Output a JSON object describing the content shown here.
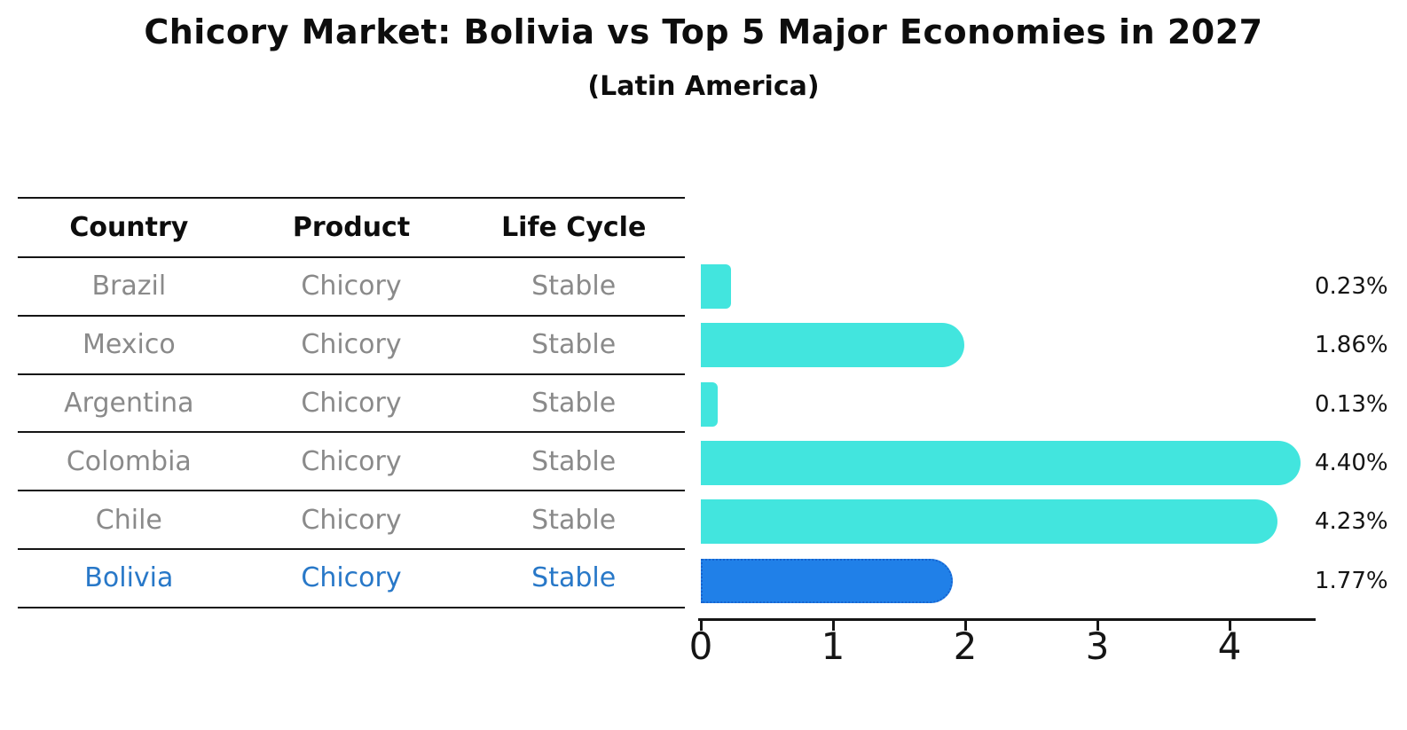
{
  "title": "Chicory Market: Bolivia vs Top 5 Major Economies in 2027",
  "subtitle": "(Latin America)",
  "table": {
    "headers": [
      "Country",
      "Product",
      "Life Cycle"
    ],
    "rows": [
      {
        "country": "Brazil",
        "product": "Chicory",
        "life_cycle": "Stable",
        "highlighted": false
      },
      {
        "country": "Mexico",
        "product": "Chicory",
        "life_cycle": "Stable",
        "highlighted": false
      },
      {
        "country": "Argentina",
        "product": "Chicory",
        "life_cycle": "Stable",
        "highlighted": false
      },
      {
        "country": "Colombia",
        "product": "Chicory",
        "life_cycle": "Stable",
        "highlighted": false
      },
      {
        "country": "Chile",
        "product": "Chicory",
        "life_cycle": "Stable",
        "highlighted": false
      },
      {
        "country": "Bolivia",
        "product": "Chicory",
        "life_cycle": "Stable",
        "highlighted": true
      }
    ]
  },
  "chart_data": {
    "type": "bar",
    "orientation": "horizontal",
    "title": "Chicory Market: Bolivia vs Top 5 Major Economies in 2027",
    "subtitle": "(Latin America)",
    "categories": [
      "Brazil",
      "Mexico",
      "Argentina",
      "Colombia",
      "Chile",
      "Bolivia"
    ],
    "values": [
      0.23,
      1.86,
      0.13,
      4.4,
      4.23,
      1.77
    ],
    "value_labels": [
      "0.23%",
      "1.86%",
      "0.13%",
      "4.40%",
      "4.23%",
      "1.77%"
    ],
    "x_ticks": [
      "0",
      "1",
      "2",
      "3",
      "4"
    ],
    "xlim": [
      0,
      4.6
    ],
    "grid": false,
    "legend": false,
    "highlight_index": 5,
    "colors": {
      "bar": "#42e5de",
      "highlight_bar": "#2080e8",
      "highlight_border": "#1663cf",
      "highlight_text": "#2878c8",
      "table_text": "#8a8a8a",
      "heading_text": "#0d0d0d",
      "axis": "#151515"
    }
  }
}
